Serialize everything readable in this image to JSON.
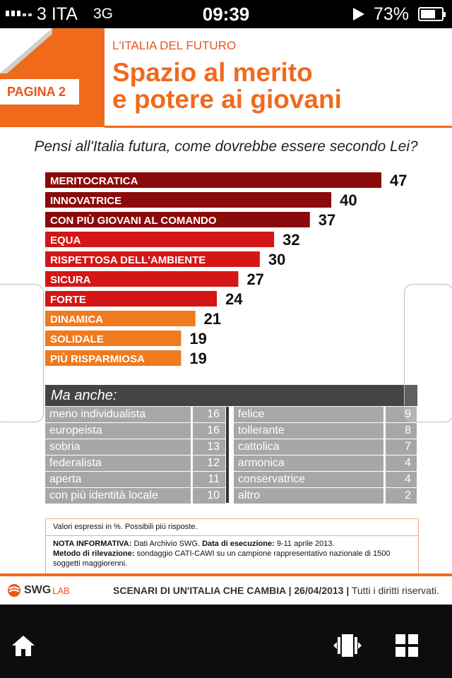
{
  "status_bar": {
    "carrier": "3 ITA",
    "network": "3G",
    "time": "09:39",
    "battery": "73%",
    "battery_level": 0.73
  },
  "header": {
    "badge": "PAGINA 2",
    "section": "L'ITALIA DEL FUTURO",
    "title_line1": "Spazio al merito",
    "title_line2": "e potere ai giovani"
  },
  "question": "Pensi all'Italia futura, come dovrebbe essere secondo Lei?",
  "chart_data": {
    "type": "bar",
    "orientation": "horizontal",
    "categories": [
      "MERITOCRATICA",
      "INNOVATRICE",
      "CON PIÙ GIOVANI AL COMANDO",
      "EQUA",
      "RISPETTOSA DELL'AMBIENTE",
      "SICURA",
      "FORTE",
      "DINAMICA",
      "SOLIDALE",
      "PIÙ RISPARMIOSA"
    ],
    "values": [
      47,
      40,
      37,
      32,
      30,
      27,
      24,
      21,
      19,
      19
    ],
    "colors": [
      "#8b0a0a",
      "#8b0a0a",
      "#8b0a0a",
      "#d41616",
      "#d41616",
      "#d41616",
      "#d41616",
      "#f07a1e",
      "#f07a1e",
      "#f07a1e"
    ],
    "xlim": [
      0,
      47
    ]
  },
  "also": {
    "title": "Ma anche:",
    "left": [
      {
        "label": "meno individualista",
        "value": "16"
      },
      {
        "label": "europeista",
        "value": "16"
      },
      {
        "label": "sobria",
        "value": "13"
      },
      {
        "label": "federalista",
        "value": "12"
      },
      {
        "label": "aperta",
        "value": "11"
      },
      {
        "label": "con più identità locale",
        "value": "10"
      }
    ],
    "right": [
      {
        "label": "felice",
        "value": "9"
      },
      {
        "label": "tollerante",
        "value": "8"
      },
      {
        "label": "cattolica",
        "value": "7"
      },
      {
        "label": "armonica",
        "value": "4"
      },
      {
        "label": "conservatrice",
        "value": "4"
      },
      {
        "label": "altro",
        "value": "2"
      }
    ]
  },
  "note": {
    "line1": "Valori espressi in %. Possibili più risposte.",
    "nota_label": "NOTA INFORMATIVA:",
    "nota_text": "Dati Archivio SWG.",
    "exec_label": "Data di esecuzione:",
    "exec_text": "9-11 aprile 2013.",
    "method_label": "Metodo di rilevazione:",
    "method_text": "sondaggio CATI-CAWI su un campione rappresentativo nazionale di 1500 soggetti maggiorenni."
  },
  "footer": {
    "logo_main": "SWG",
    "logo_sub": "LAB",
    "text_bold": "SCENARI DI UN'ITALIA CHE CAMBIA | 26/04/2013 |",
    "text_rest": " Tutti i diritti riservati."
  },
  "toolbar": {
    "icons": [
      "home-icon",
      "pages-icon",
      "grid-icon"
    ]
  }
}
